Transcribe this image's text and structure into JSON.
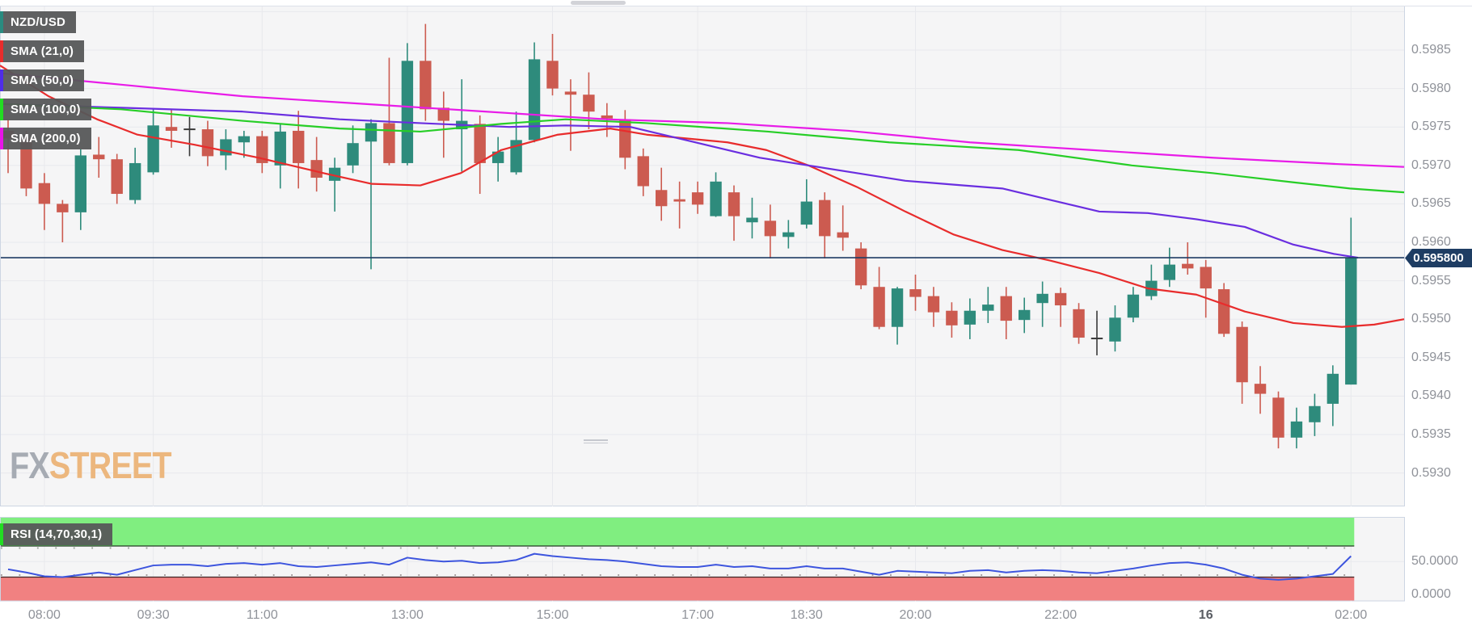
{
  "pair": "NZD/USD",
  "legend": {
    "symbol": {
      "label": "NZD/USD",
      "color": "#2A8B80"
    },
    "sma21": {
      "label": "SMA (21,0)",
      "color": "#E82C2C"
    },
    "sma50": {
      "label": "SMA (50,0)",
      "color": "#4F2DE8"
    },
    "sma100": {
      "label": "SMA (100,0)",
      "color": "#22DD22"
    },
    "sma200": {
      "label": "SMA (200,0)",
      "color": "#E814E8"
    },
    "rsi": {
      "label": "RSI (14,70,30,1)",
      "color": "#22DD22"
    }
  },
  "watermark": {
    "fx": "FX",
    "street": "STREET"
  },
  "price_axis": {
    "labels": [
      "0.5985",
      "0.5980",
      "0.5975",
      "0.5970",
      "0.5965",
      "0.5960",
      "0.5955",
      "0.5950",
      "0.5945",
      "0.5940",
      "0.5935",
      "0.5930"
    ],
    "current": "0.595800"
  },
  "rsi_axis": {
    "mid": "50.0000",
    "zero": "0.0000"
  },
  "time_axis": [
    {
      "i": 2,
      "label": "08:00"
    },
    {
      "i": 8,
      "label": "09:30"
    },
    {
      "i": 14,
      "label": "11:00"
    },
    {
      "i": 22,
      "label": "13:00"
    },
    {
      "i": 30,
      "label": "15:00"
    },
    {
      "i": 38,
      "label": "17:00"
    },
    {
      "i": 44,
      "label": "18:30"
    },
    {
      "i": 50,
      "label": "20:00"
    },
    {
      "i": 58,
      "label": "22:00"
    },
    {
      "i": 66,
      "label": "16",
      "bold": true
    },
    {
      "i": 74,
      "label": "02:00"
    }
  ],
  "colors": {
    "up": "#2E8B7C",
    "down": "#CC5B50",
    "neutral": "#3A3A3A",
    "sma21": "#E82C2C",
    "sma50": "#6A2EE0",
    "sma100": "#27CE27",
    "sma200": "#E81CE8",
    "price_line": "#1E3D63",
    "tag_bg": "#1E3D63",
    "rsi_line": "#3D55DE",
    "rsi_overbought_band": "#80EE80",
    "rsi_oversold_band": "#F18181",
    "band_line_green": "#253A25",
    "band_line_red": "#402525",
    "grid": "#E8E9ED",
    "plot_bg": "#F5F5F6",
    "border": "#CDD5E3",
    "axis_text": "#8F9299"
  },
  "chart_data": {
    "type": "candlestick",
    "symbol": "NZD/USD",
    "interval_minutes": 15,
    "price_range_visible": [
      0.5926,
      0.599
    ],
    "current_price": 0.5958,
    "grid_prices": [
      0.599,
      0.5985,
      0.598,
      0.5975,
      0.597,
      0.5965,
      0.596,
      0.5955,
      0.595,
      0.5945,
      0.594,
      0.5935,
      0.593
    ],
    "candles": [
      [
        "07:30",
        0.59745,
        0.5976,
        0.5969,
        0.59735
      ],
      [
        "07:45",
        0.59735,
        0.59745,
        0.5966,
        0.5967
      ],
      [
        "08:00",
        0.59677,
        0.5969,
        0.59616,
        0.5965
      ],
      [
        "08:15",
        0.5965,
        0.59655,
        0.596,
        0.59639
      ],
      [
        "08:30",
        0.59639,
        0.59721,
        0.59616,
        0.59713
      ],
      [
        "08:45",
        0.59714,
        0.59737,
        0.59684,
        0.59708
      ],
      [
        "09:00",
        0.59708,
        0.59715,
        0.5965,
        0.59663
      ],
      [
        "09:15",
        0.59655,
        0.59723,
        0.5965,
        0.59703
      ],
      [
        "09:30",
        0.59691,
        0.59773,
        0.59688,
        0.59752
      ],
      [
        "09:45",
        0.5975,
        0.59773,
        0.59723,
        0.59745
      ],
      [
        "10:00",
        0.59748,
        0.59763,
        0.59712,
        0.59748,
        1
      ],
      [
        "10:15",
        0.59747,
        0.59758,
        0.59699,
        0.59712
      ],
      [
        "10:30",
        0.59713,
        0.59747,
        0.59694,
        0.59734
      ],
      [
        "10:45",
        0.5973,
        0.59745,
        0.5971,
        0.59738
      ],
      [
        "11:00",
        0.59738,
        0.59745,
        0.5969,
        0.59703
      ],
      [
        "11:15",
        0.597,
        0.59755,
        0.5967,
        0.59744
      ],
      [
        "11:30",
        0.59745,
        0.59771,
        0.5967,
        0.59703
      ],
      [
        "11:45",
        0.59707,
        0.59737,
        0.59666,
        0.59684
      ],
      [
        "12:00",
        0.5968,
        0.5971,
        0.5964,
        0.59697
      ],
      [
        "12:15",
        0.597,
        0.59752,
        0.5969,
        0.59729
      ],
      [
        "12:30",
        0.59731,
        0.5976,
        0.59565,
        0.59755
      ],
      [
        "12:45",
        0.59755,
        0.5984,
        0.597,
        0.59703
      ],
      [
        "13:00",
        0.59703,
        0.59859,
        0.597,
        0.59836
      ],
      [
        "13:15",
        0.59836,
        0.59884,
        0.59758,
        0.59773
      ],
      [
        "13:30",
        0.59775,
        0.59796,
        0.5971,
        0.59758
      ],
      [
        "13:45",
        0.59747,
        0.59812,
        0.59692,
        0.59758
      ],
      [
        "14:00",
        0.59754,
        0.59765,
        0.59663,
        0.59703
      ],
      [
        "14:15",
        0.59703,
        0.59737,
        0.59679,
        0.59718
      ],
      [
        "14:30",
        0.59691,
        0.5977,
        0.59688,
        0.59733
      ],
      [
        "14:45",
        0.59733,
        0.5986,
        0.5973,
        0.59838
      ],
      [
        "15:00",
        0.59836,
        0.59871,
        0.59791,
        0.598
      ],
      [
        "15:15",
        0.59796,
        0.59812,
        0.59719,
        0.59792
      ],
      [
        "15:30",
        0.59792,
        0.59821,
        0.59747,
        0.5977
      ],
      [
        "15:45",
        0.59765,
        0.59781,
        0.59737,
        0.59761
      ],
      [
        "16:00",
        0.5976,
        0.59772,
        0.59695,
        0.5971
      ],
      [
        "16:15",
        0.59712,
        0.59722,
        0.5966,
        0.59673
      ],
      [
        "16:30",
        0.59668,
        0.59697,
        0.59628,
        0.59647
      ],
      [
        "16:45",
        0.59656,
        0.59679,
        0.59618,
        0.59653
      ],
      [
        "17:00",
        0.59665,
        0.59679,
        0.59637,
        0.59649
      ],
      [
        "17:15",
        0.59634,
        0.59691,
        0.59633,
        0.59679
      ],
      [
        "17:30",
        0.59665,
        0.59674,
        0.59602,
        0.59634
      ],
      [
        "17:45",
        0.59626,
        0.59658,
        0.59605,
        0.59632
      ],
      [
        "18:00",
        0.59628,
        0.59649,
        0.59579,
        0.59608
      ],
      [
        "18:15",
        0.59607,
        0.59629,
        0.59592,
        0.59613
      ],
      [
        "18:30",
        0.59623,
        0.59682,
        0.59618,
        0.59653
      ],
      [
        "18:45",
        0.59655,
        0.59665,
        0.59579,
        0.59608
      ],
      [
        "19:00",
        0.59613,
        0.59648,
        0.59589,
        0.59606
      ],
      [
        "19:15",
        0.59592,
        0.596,
        0.59539,
        0.59544
      ],
      [
        "19:30",
        0.59542,
        0.59568,
        0.59487,
        0.5949
      ],
      [
        "19:45",
        0.5949,
        0.59542,
        0.59467,
        0.5954
      ],
      [
        "20:00",
        0.59539,
        0.59558,
        0.59511,
        0.59529
      ],
      [
        "20:15",
        0.5953,
        0.59542,
        0.5949,
        0.59509
      ],
      [
        "20:30",
        0.59511,
        0.59522,
        0.59476,
        0.59492
      ],
      [
        "20:45",
        0.59493,
        0.59527,
        0.59474,
        0.59511
      ],
      [
        "21:00",
        0.59511,
        0.59542,
        0.59495,
        0.59519
      ],
      [
        "21:15",
        0.5953,
        0.59542,
        0.59474,
        0.59498
      ],
      [
        "21:30",
        0.59499,
        0.59528,
        0.59482,
        0.59512
      ],
      [
        "21:45",
        0.59521,
        0.59549,
        0.5949,
        0.59533
      ],
      [
        "22:00",
        0.59534,
        0.59541,
        0.5949,
        0.59518
      ],
      [
        "22:15",
        0.59513,
        0.59521,
        0.59468,
        0.59476
      ],
      [
        "22:30",
        0.59476,
        0.59511,
        0.59453,
        0.59476,
        1
      ],
      [
        "22:45",
        0.59471,
        0.59518,
        0.59458,
        0.59502
      ],
      [
        "23:00",
        0.59502,
        0.59542,
        0.59496,
        0.59532
      ],
      [
        "23:15",
        0.5953,
        0.59571,
        0.59525,
        0.5955
      ],
      [
        "23:30",
        0.59551,
        0.59593,
        0.59542,
        0.59571
      ],
      [
        "23:45",
        0.59572,
        0.596,
        0.59558,
        0.59566
      ],
      [
        "00:00",
        0.59568,
        0.59577,
        0.59502,
        0.5954
      ],
      [
        "00:15",
        0.59539,
        0.59547,
        0.59477,
        0.59481
      ],
      [
        "00:30",
        0.5949,
        0.59497,
        0.5939,
        0.59418
      ],
      [
        "00:45",
        0.59416,
        0.59439,
        0.59377,
        0.59403
      ],
      [
        "01:00",
        0.59398,
        0.59406,
        0.59332,
        0.59346
      ],
      [
        "01:15",
        0.59346,
        0.59385,
        0.59332,
        0.59367
      ],
      [
        "01:30",
        0.59366,
        0.59403,
        0.59348,
        0.59387
      ],
      [
        "01:45",
        0.5939,
        0.5944,
        0.59361,
        0.59429
      ],
      [
        "02:00",
        0.59415,
        0.59632,
        0.59415,
        0.5958
      ]
    ],
    "overlays": [
      {
        "name": "SMA (21,0)",
        "color_key": "sma21",
        "points": [
          [
            0,
            0.5983
          ],
          [
            60,
            0.5979
          ],
          [
            120,
            0.5976
          ],
          [
            170,
            0.5974
          ],
          [
            240,
            0.59727
          ],
          [
            320,
            0.5971
          ],
          [
            400,
            0.5969
          ],
          [
            460,
            0.59676
          ],
          [
            520,
            0.59674
          ],
          [
            570,
            0.5969
          ],
          [
            620,
            0.5972
          ],
          [
            690,
            0.5974
          ],
          [
            755,
            0.59748
          ],
          [
            800,
            0.5974
          ],
          [
            850,
            0.59735
          ],
          [
            900,
            0.5973
          ],
          [
            948,
            0.5972
          ],
          [
            1000,
            0.597
          ],
          [
            1060,
            0.59672
          ],
          [
            1120,
            0.5964
          ],
          [
            1180,
            0.5961
          ],
          [
            1240,
            0.5959
          ],
          [
            1300,
            0.59576
          ],
          [
            1360,
            0.5956
          ],
          [
            1420,
            0.5954
          ],
          [
            1480,
            0.59532
          ],
          [
            1540,
            0.5951
          ],
          [
            1600,
            0.59495
          ],
          [
            1660,
            0.5949
          ],
          [
            1700,
            0.59493
          ],
          [
            1737,
            0.595
          ]
        ]
      },
      {
        "name": "SMA (50,0)",
        "color_key": "sma50",
        "points": [
          [
            0,
            0.5978
          ],
          [
            150,
            0.59775
          ],
          [
            300,
            0.5977
          ],
          [
            420,
            0.5976
          ],
          [
            520,
            0.59755
          ],
          [
            630,
            0.5975
          ],
          [
            700,
            0.59752
          ],
          [
            780,
            0.5975
          ],
          [
            860,
            0.5973
          ],
          [
            940,
            0.5971
          ],
          [
            1000,
            0.597
          ],
          [
            1060,
            0.5969
          ],
          [
            1120,
            0.5968
          ],
          [
            1180,
            0.59675
          ],
          [
            1240,
            0.5967
          ],
          [
            1300,
            0.59655
          ],
          [
            1360,
            0.5964
          ],
          [
            1420,
            0.59638
          ],
          [
            1480,
            0.5963
          ],
          [
            1540,
            0.5962
          ],
          [
            1600,
            0.59597
          ],
          [
            1650,
            0.59585
          ],
          [
            1680,
            0.5958
          ]
        ]
      },
      {
        "name": "SMA (100,0)",
        "color_key": "sma100",
        "points": [
          [
            0,
            0.5978
          ],
          [
            150,
            0.59773
          ],
          [
            300,
            0.59758
          ],
          [
            420,
            0.59748
          ],
          [
            520,
            0.59744
          ],
          [
            620,
            0.59754
          ],
          [
            700,
            0.5976
          ],
          [
            800,
            0.59755
          ],
          [
            950,
            0.59744
          ],
          [
            1100,
            0.5973
          ],
          [
            1260,
            0.5972
          ],
          [
            1400,
            0.597
          ],
          [
            1500,
            0.5969
          ],
          [
            1600,
            0.59678
          ],
          [
            1670,
            0.5967
          ],
          [
            1737,
            0.59665
          ]
        ]
      },
      {
        "name": "SMA (200,0)",
        "color_key": "sma200",
        "points": [
          [
            0,
            0.5982
          ],
          [
            150,
            0.59805
          ],
          [
            300,
            0.5979
          ],
          [
            450,
            0.5978
          ],
          [
            600,
            0.5977
          ],
          [
            750,
            0.5976
          ],
          [
            900,
            0.59755
          ],
          [
            1050,
            0.59745
          ],
          [
            1200,
            0.5973
          ],
          [
            1350,
            0.5972
          ],
          [
            1500,
            0.5971
          ],
          [
            1650,
            0.59702
          ],
          [
            1737,
            0.59698
          ]
        ]
      }
    ],
    "rsi": {
      "name": "RSI (14,70,30,1)",
      "overbought": 70,
      "oversold": 30,
      "scale_labels": [
        50.0,
        0.0
      ],
      "values": [
        40,
        36,
        31,
        30,
        33,
        36,
        33,
        39,
        45,
        46,
        46,
        44,
        47,
        48,
        46,
        48,
        44,
        43,
        45,
        47,
        49,
        46,
        55,
        52,
        50,
        51,
        48,
        49,
        52,
        60,
        57,
        55,
        53,
        52,
        50,
        47,
        44,
        43,
        43,
        46,
        43,
        44,
        41,
        41,
        44,
        41,
        41,
        37,
        33,
        38,
        37,
        36,
        35,
        38,
        39,
        36,
        38,
        39,
        38,
        36,
        35,
        38,
        41,
        45,
        48,
        49,
        46,
        41,
        33,
        28,
        26.5,
        28,
        31,
        34,
        57
      ]
    }
  }
}
